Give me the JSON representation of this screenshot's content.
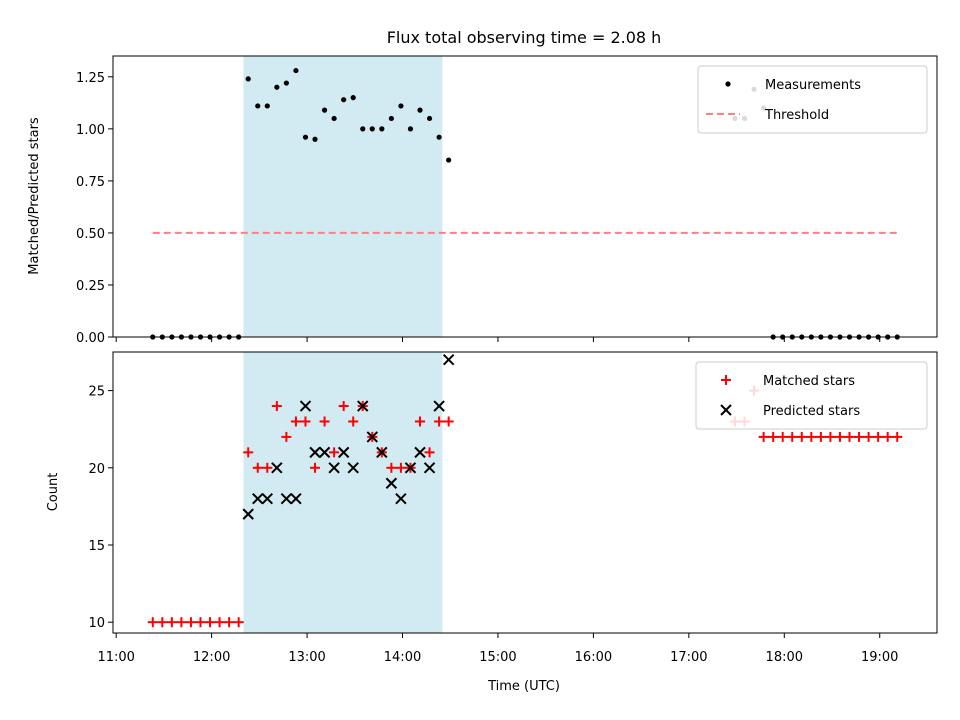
{
  "chart_data": [
    {
      "type": "scatter",
      "title": "Flux total observing time = 2.08 h",
      "xlabel": "",
      "ylabel": "Matched/Predicted stars",
      "ylim": [
        0,
        1.35
      ],
      "yticks": [
        "0.00",
        "0.25",
        "0.50",
        "0.75",
        "1.00",
        "1.25"
      ],
      "shaded_region": {
        "x_start": "12:20",
        "x_end": "14:25",
        "color": "#add8e6"
      },
      "legend_position": "top-right",
      "series": [
        {
          "name": "Measurements",
          "marker": "dot",
          "color": "#000000",
          "x": [
            "11:23",
            "11:29",
            "11:35",
            "11:41",
            "11:47",
            "11:53",
            "11:59",
            "12:05",
            "12:11",
            "12:17",
            "12:23",
            "12:29",
            "12:35",
            "12:41",
            "12:47",
            "12:53",
            "12:59",
            "13:05",
            "13:11",
            "13:17",
            "13:23",
            "13:29",
            "13:35",
            "13:41",
            "13:47",
            "13:53",
            "13:59",
            "14:05",
            "14:11",
            "14:17",
            "14:23",
            "14:29",
            "17:29",
            "17:35",
            "17:41",
            "17:47",
            "17:53",
            "17:59",
            "18:05",
            "18:11",
            "18:17",
            "18:23",
            "18:29",
            "18:35",
            "18:41",
            "18:47",
            "18:53",
            "18:59",
            "19:05",
            "19:11"
          ],
          "y": [
            0,
            0,
            0,
            0,
            0,
            0,
            0,
            0,
            0,
            0,
            1.24,
            1.11,
            1.11,
            1.2,
            1.22,
            1.28,
            0.96,
            0.95,
            1.09,
            1.05,
            1.14,
            1.15,
            1.0,
            1.0,
            1.0,
            1.05,
            1.11,
            1.0,
            1.09,
            1.05,
            0.96,
            0.85,
            1.05,
            1.05,
            1.19,
            1.1,
            0,
            0,
            0,
            0,
            0,
            0,
            0,
            0,
            0,
            0,
            0,
            0,
            0,
            0
          ]
        },
        {
          "name": "Threshold",
          "marker": "dashed-line",
          "color": "#ff7f7f",
          "x": [
            "11:23",
            "19:11"
          ],
          "y": [
            0.5,
            0.5
          ]
        }
      ]
    },
    {
      "type": "scatter",
      "title": "",
      "xlabel": "Time (UTC)",
      "ylabel": "Count",
      "ylim": [
        9.3,
        27.5
      ],
      "yticks": [
        "10",
        "15",
        "20",
        "25"
      ],
      "xticks": [
        "11:00",
        "12:00",
        "13:00",
        "14:00",
        "15:00",
        "16:00",
        "17:00",
        "18:00",
        "19:00"
      ],
      "legend_position": "top-right",
      "series": [
        {
          "name": "Matched stars",
          "marker": "plus",
          "color": "#ff0000",
          "x": [
            "11:23",
            "11:29",
            "11:35",
            "11:41",
            "11:47",
            "11:53",
            "11:59",
            "12:05",
            "12:11",
            "12:17",
            "12:23",
            "12:29",
            "12:35",
            "12:41",
            "12:47",
            "12:53",
            "12:59",
            "13:05",
            "13:11",
            "13:17",
            "13:23",
            "13:29",
            "13:35",
            "13:41",
            "13:47",
            "13:53",
            "13:59",
            "14:05",
            "14:11",
            "14:17",
            "14:23",
            "14:29",
            "17:29",
            "17:35",
            "17:41",
            "17:47",
            "17:53",
            "17:59",
            "18:05",
            "18:11",
            "18:17",
            "18:23",
            "18:29",
            "18:35",
            "18:41",
            "18:47",
            "18:53",
            "18:59",
            "19:05",
            "19:11"
          ],
          "y": [
            10,
            10,
            10,
            10,
            10,
            10,
            10,
            10,
            10,
            10,
            21,
            20,
            20,
            24,
            22,
            23,
            23,
            20,
            23,
            21,
            24,
            23,
            24,
            22,
            21,
            20,
            20,
            20,
            23,
            21,
            23,
            23,
            23,
            23,
            25,
            22,
            22,
            22,
            22,
            22,
            22,
            22,
            22,
            22,
            22,
            22,
            22,
            22,
            22,
            22
          ]
        },
        {
          "name": "Predicted stars",
          "marker": "x",
          "color": "#000000",
          "x": [
            "12:23",
            "12:29",
            "12:35",
            "12:41",
            "12:47",
            "12:53",
            "12:59",
            "13:05",
            "13:11",
            "13:17",
            "13:23",
            "13:29",
            "13:35",
            "13:41",
            "13:47",
            "13:53",
            "13:59",
            "14:05",
            "14:11",
            "14:17",
            "14:23",
            "14:29"
          ],
          "y": [
            17,
            18,
            18,
            20,
            18,
            18,
            24,
            21,
            21,
            20,
            21,
            20,
            24,
            22,
            21,
            19,
            18,
            20,
            21,
            20,
            24,
            27
          ]
        }
      ]
    }
  ]
}
